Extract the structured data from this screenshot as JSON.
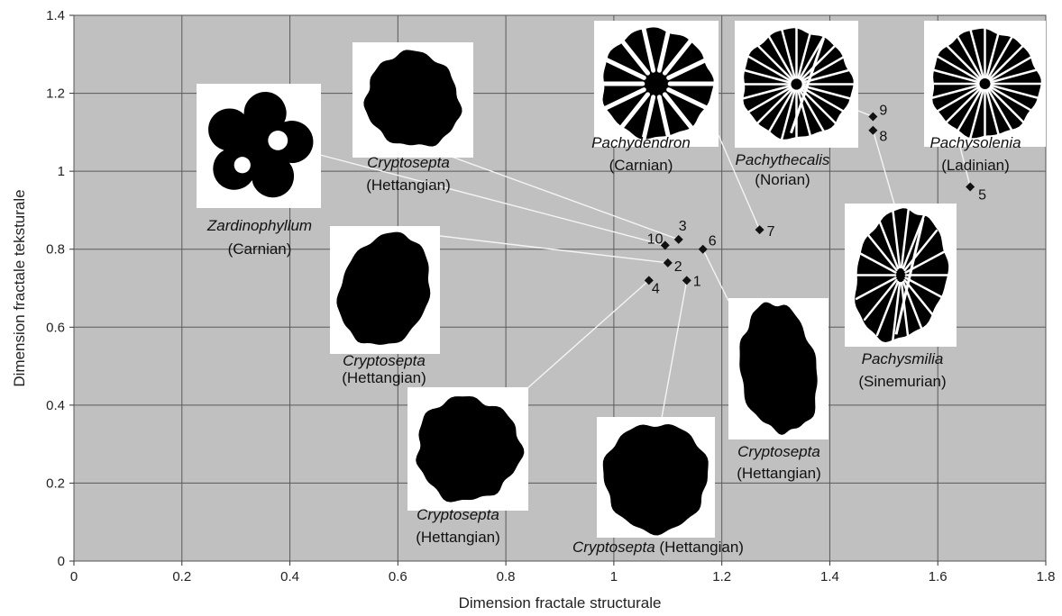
{
  "chart_data": {
    "type": "scatter",
    "title": "",
    "xlabel": "Dimension fractale structurale",
    "ylabel": "Dimension fractale teksturale",
    "xlim": [
      0,
      1.8
    ],
    "ylim": [
      0,
      1.4
    ],
    "xticks": [
      "0",
      "0.2",
      "0.4",
      "0.6",
      "0.8",
      "1",
      "1.2",
      "1.4",
      "1.6",
      "1.8"
    ],
    "yticks": [
      "0",
      "0.2",
      "0.4",
      "0.6",
      "0.8",
      "1",
      "1.2",
      "1.4"
    ],
    "grid": true,
    "background": "#c0c0c0",
    "marker": "diamond",
    "points": [
      {
        "label": "1",
        "x": 1.135,
        "y": 0.72
      },
      {
        "label": "2",
        "x": 1.1,
        "y": 0.765
      },
      {
        "label": "3",
        "x": 1.12,
        "y": 0.825
      },
      {
        "label": "4",
        "x": 1.065,
        "y": 0.72
      },
      {
        "label": "5",
        "x": 1.66,
        "y": 0.96
      },
      {
        "label": "6",
        "x": 1.165,
        "y": 0.8
      },
      {
        "label": "7",
        "x": 1.27,
        "y": 0.85
      },
      {
        "label": "8",
        "x": 1.48,
        "y": 1.105
      },
      {
        "label": "9",
        "x": 1.48,
        "y": 1.14
      },
      {
        "label": "10",
        "x": 1.095,
        "y": 0.81
      }
    ],
    "annotations": [
      {
        "genus": "Zardinophyllum",
        "stage": "(Carnian)",
        "shape": "star",
        "point": "10"
      },
      {
        "genus": "Cryptosepta",
        "stage": "(Hettangian)",
        "shape": "blob",
        "point": "3"
      },
      {
        "genus": "Pachydendron",
        "stage": "(Carnian)",
        "shape": "branch",
        "point": "7"
      },
      {
        "genus": "Pachythecalis",
        "stage": "(Norian)",
        "shape": "radial",
        "point": "9"
      },
      {
        "genus": "Pachysolenia",
        "stage": "(Ladinian)",
        "shape": "radial2",
        "point": "5"
      },
      {
        "genus": "Cryptosepta",
        "stage": "(Hettangian)",
        "shape": "oval",
        "point": "2"
      },
      {
        "genus": "Pachysmilia",
        "stage": "(Sinemurian)",
        "shape": "fan",
        "point": "8"
      },
      {
        "genus": "Cryptosepta",
        "stage": "(Hettangian)",
        "shape": "blob2",
        "point": "4"
      },
      {
        "genus": "Cryptosepta",
        "stage": "(Hettangian)",
        "shape": "round",
        "point": "1",
        "inline": true
      },
      {
        "genus": "Cryptosepta",
        "stage": "(Hettangian)",
        "shape": "tall",
        "point": "6"
      }
    ]
  }
}
